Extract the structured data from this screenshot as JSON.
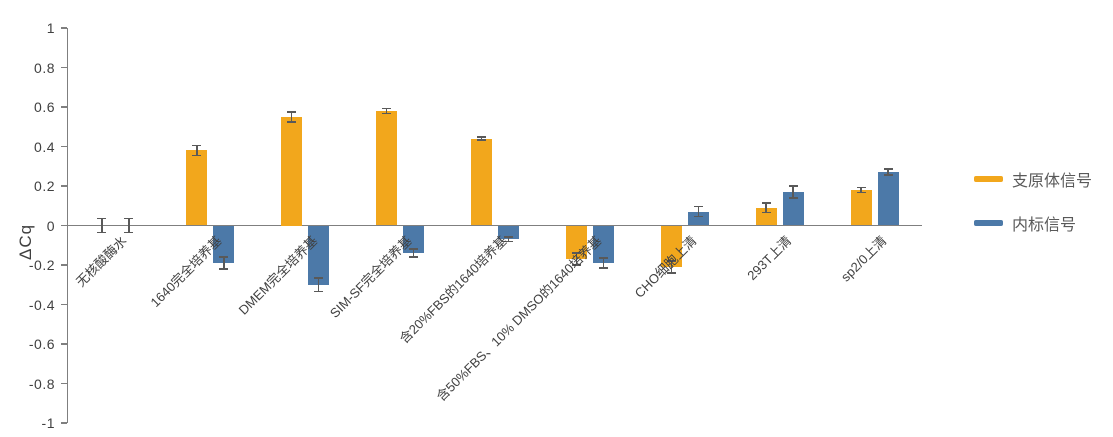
{
  "chart_data": {
    "type": "bar",
    "title": "",
    "xlabel": "",
    "ylabel": "ΔCq",
    "ylim": [
      -1,
      1
    ],
    "ytick_step": 0.2,
    "grid": false,
    "legend_position": "right",
    "background_color": "#FFFFFF",
    "axis_color": "#7F7F7F",
    "text_color": "#404040",
    "legend_text_color": "#595959",
    "categories": [
      "无核酸酶水",
      "1640完全培养基",
      "DMEM完全培养基",
      "SIM-SF完全培养基",
      "含20%FBS的1640培养基",
      "含50%FBS、10% DMSO的1640培养基",
      "CHO细胞上清",
      "293T上清",
      "sp2/0上清"
    ],
    "series": [
      {
        "name": "支原体信号",
        "color": "#F2A71C",
        "values": [
          0,
          0.38,
          0.55,
          0.58,
          0.44,
          -0.17,
          -0.21,
          0.09,
          0.18
        ],
        "errors": [
          0.035,
          0.025,
          0.025,
          0.012,
          0.008,
          0.03,
          0.03,
          0.025,
          0.012
        ]
      },
      {
        "name": "内标信号",
        "color": "#4C79A8",
        "values": [
          0,
          -0.19,
          -0.3,
          -0.14,
          -0.07,
          -0.19,
          0.07,
          0.17,
          0.27
        ],
        "errors": [
          0.035,
          0.03,
          0.035,
          0.02,
          0.012,
          0.025,
          0.025,
          0.03,
          0.015
        ]
      }
    ],
    "yticks": [
      "1",
      "0.8",
      "0.6",
      "0.4",
      "0.2",
      "0",
      "-0.2",
      "-0.4",
      "-0.6",
      "-0.8",
      "-1"
    ]
  }
}
